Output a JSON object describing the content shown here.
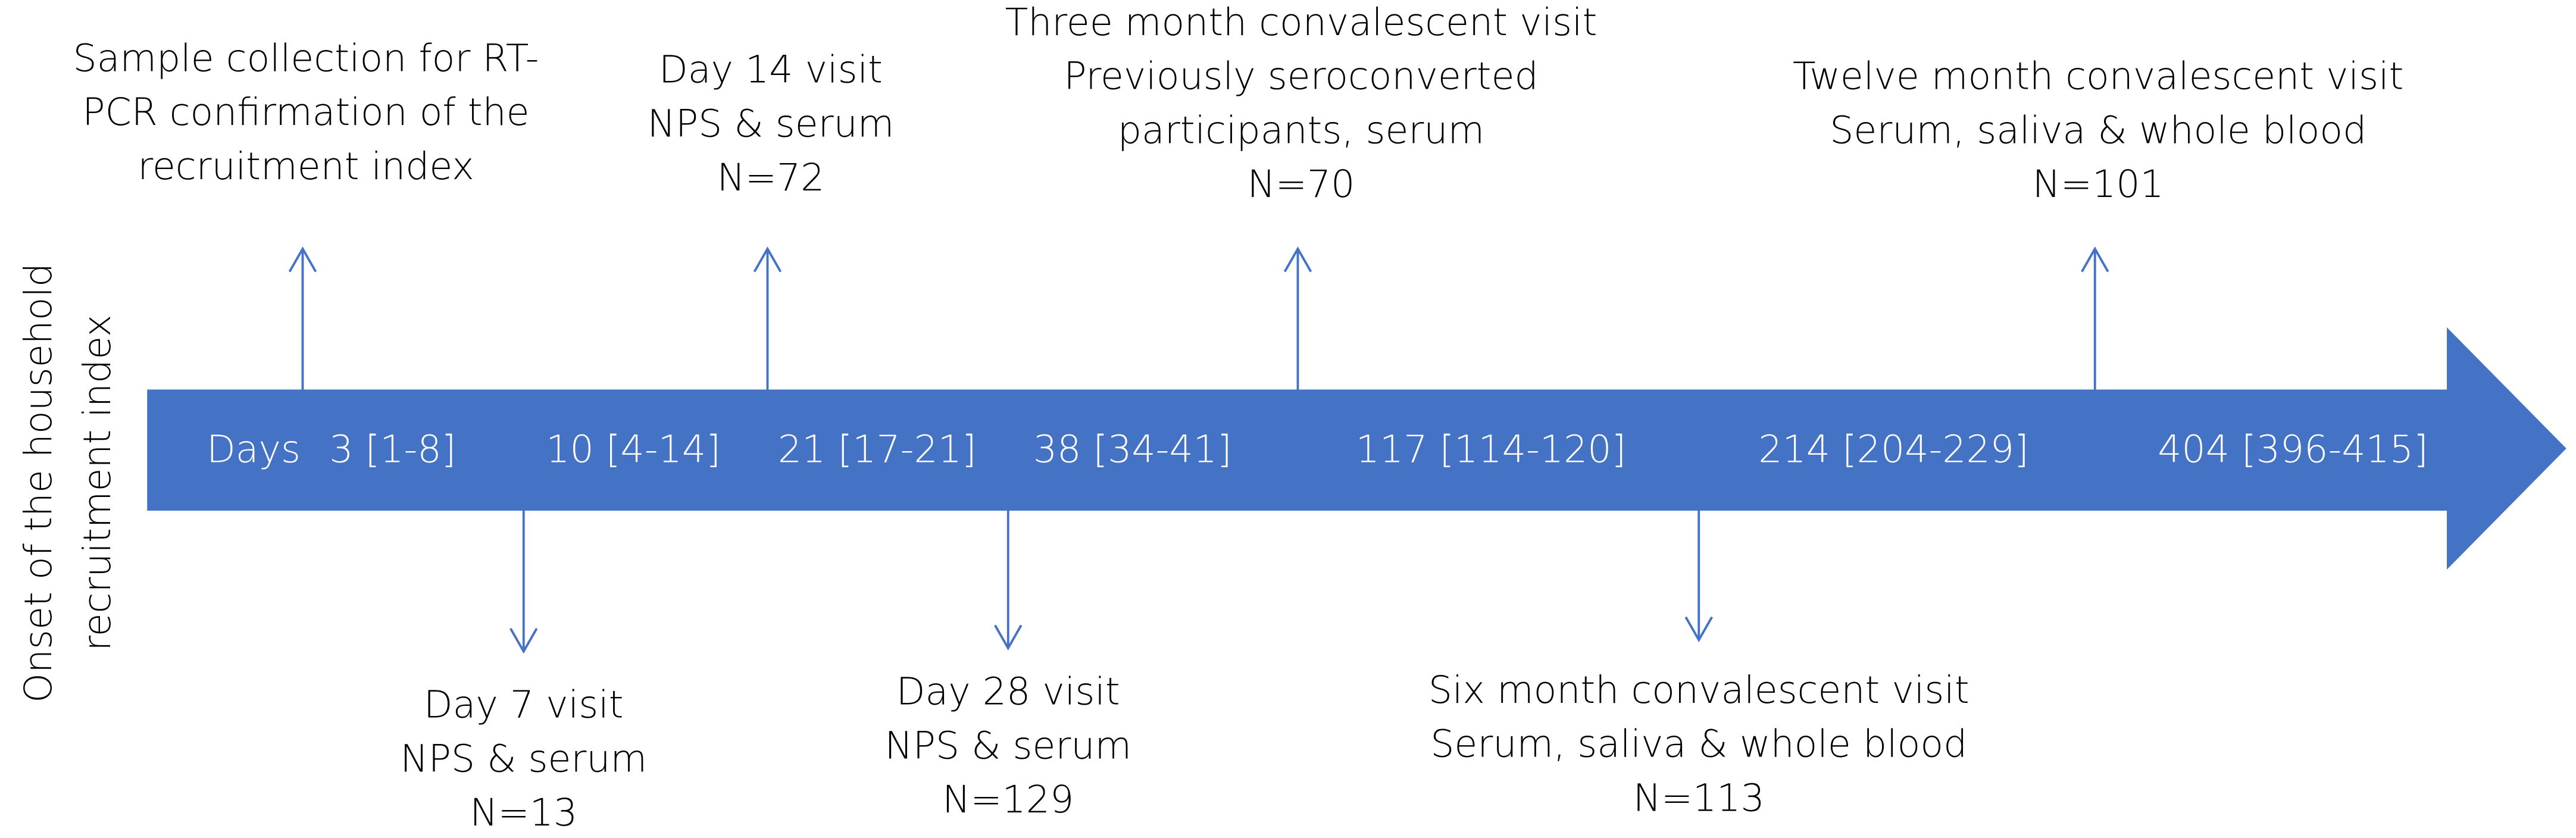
{
  "side_label": {
    "lines": [
      "Onset of the household",
      "recruitment index"
    ]
  },
  "timeline": {
    "labels": [
      "Days",
      "3 [1-8]",
      "10 [4-14]",
      "21 [17-21]",
      "38 [34-41]",
      "117 [114-120]",
      "214 [204-229]",
      "404 [396-415]"
    ]
  },
  "events_above": [
    {
      "lines": [
        "Sample collection for RT-",
        "PCR confirmation of the",
        "recruitment index"
      ]
    },
    {
      "lines": [
        "Day 14 visit",
        "NPS & serum",
        "N=72"
      ]
    },
    {
      "lines": [
        "Three month convalescent visit",
        "Previously seroconverted",
        "participants, serum",
        "N=70"
      ]
    },
    {
      "lines": [
        "Twelve month convalescent visit",
        "Serum, saliva & whole blood",
        "N=101"
      ]
    }
  ],
  "events_below": [
    {
      "lines": [
        "Day 7 visit",
        "NPS & serum",
        "N=13"
      ]
    },
    {
      "lines": [
        "Day 28 visit",
        "NPS & serum",
        "N=129"
      ]
    },
    {
      "lines": [
        "Six month convalescent visit",
        "Serum, saliva & whole blood",
        "N=113"
      ]
    }
  ]
}
